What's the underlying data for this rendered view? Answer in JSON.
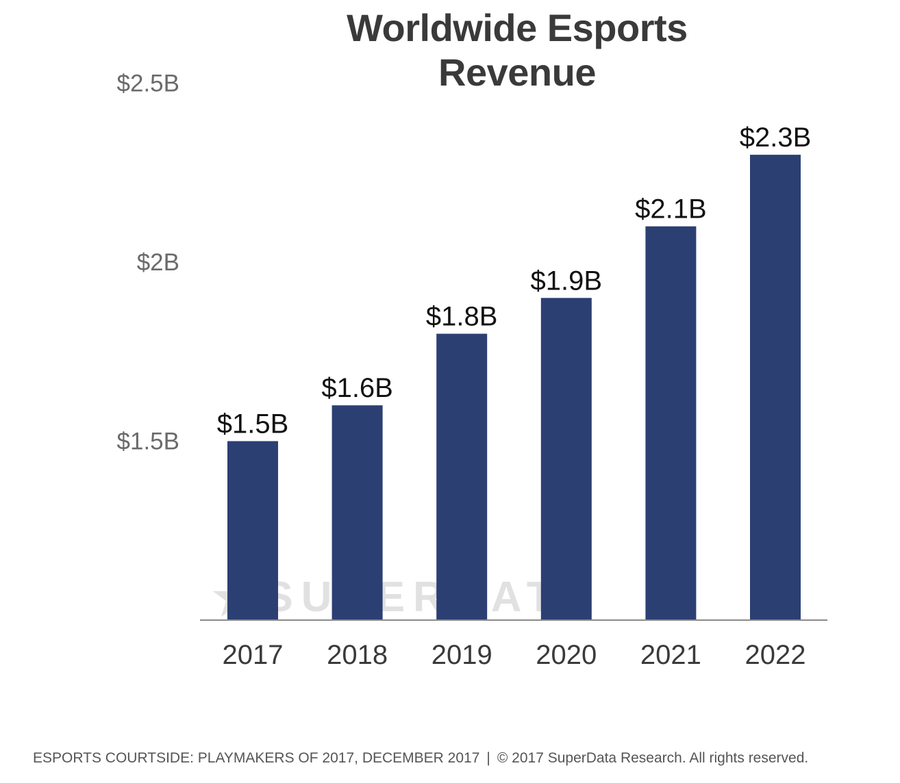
{
  "chart_data": {
    "type": "bar",
    "title": "Worldwide Esports Revenue",
    "categories": [
      "2017",
      "2018",
      "2019",
      "2020",
      "2021",
      "2022"
    ],
    "values": [
      1.5,
      1.6,
      1.8,
      1.9,
      2.1,
      2.3
    ],
    "data_labels": [
      "$1.5B",
      "$1.6B",
      "$1.8B",
      "$1.9B",
      "$2.1B",
      "$2.3B"
    ],
    "y_ticks": [
      {
        "value": 1.5,
        "label": "$1.5B"
      },
      {
        "value": 2.0,
        "label": "$2B"
      },
      {
        "value": 2.5,
        "label": "$2.5B"
      }
    ],
    "ylim": [
      1.0,
      2.5
    ],
    "grid": false,
    "bar_color": "#2b3f73",
    "xlabel": "",
    "ylabel": ""
  },
  "watermark": {
    "text": "SUPERDATA",
    "icon": "star-icon"
  },
  "footer": {
    "source": "ESPORTS COURTSIDE: PLAYMAKERS OF 2017, DECEMBER 2017",
    "separator": "|",
    "copyright": "© 2017 SuperData Research. All rights reserved."
  }
}
